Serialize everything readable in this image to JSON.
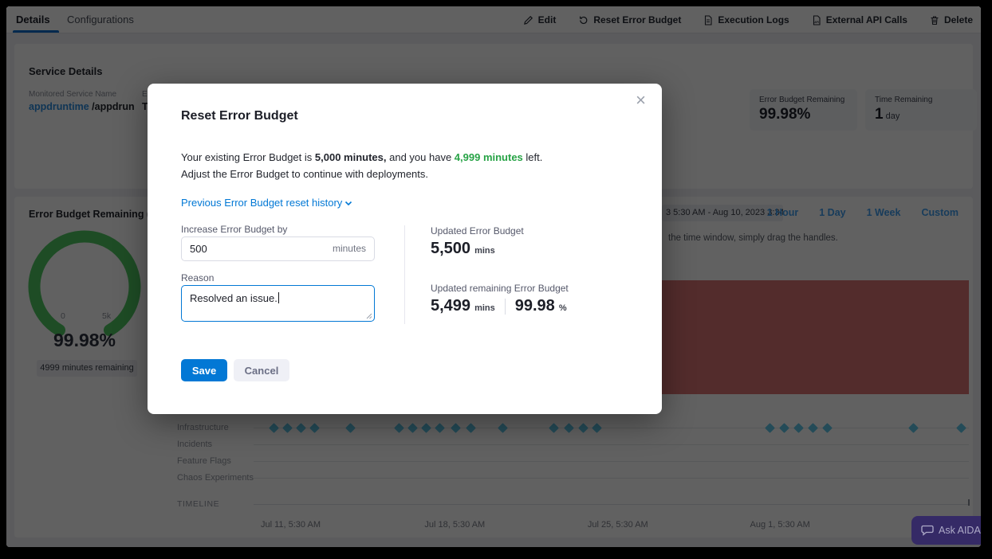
{
  "tabs": {
    "items": [
      {
        "label": "Details",
        "active": true
      },
      {
        "label": "Configurations",
        "active": false
      }
    ]
  },
  "toolbar": {
    "items": [
      {
        "label": "Edit",
        "icon": "pencil-icon"
      },
      {
        "label": "Reset Error Budget",
        "icon": "reset-icon"
      },
      {
        "label": "Execution Logs",
        "icon": "document-icon"
      },
      {
        "label": "External API Calls",
        "icon": "api-document-icon"
      },
      {
        "label": "Delete",
        "icon": "trash-icon"
      }
    ]
  },
  "service_details": {
    "heading": "Service Details",
    "monitored_label": "Monitored Service Name",
    "monitored_value_link": "appdruntime",
    "monitored_value_rest": " /appdrun",
    "second_label_fragment": "Eva",
    "second_value_fragment": "Tim",
    "stats": [
      {
        "label": "Error Budget Remaining",
        "value": "99.98%",
        "unit": ""
      },
      {
        "label": "Time Remaining",
        "value": "1",
        "unit": "day"
      }
    ]
  },
  "burndown": {
    "title": "Error Budget Remaining (mins)",
    "date_range_fragment": "3 5:30 AM - Aug 10, 2023 3:34 PM",
    "range_links": [
      "1 Hour",
      "1 Day",
      "1 Week",
      "Custom"
    ],
    "hint_fragment": "the time window, simply drag the handles.",
    "timeline_label": "TIMELINE"
  },
  "chart_data": {
    "type": "gauge",
    "gauge": {
      "percent": 99.98,
      "display": "99.98%",
      "min_label": "0",
      "max_label": "5k",
      "badge": "4999 minutes remaining",
      "color": "#4fc763"
    },
    "burn_region_color": "#d97575",
    "event_rows": [
      {
        "name": "Infrastructure",
        "marker_pct": [
          2.8,
          4.7,
          6.6,
          8.5,
          13.5,
          20.3,
          22.2,
          24.1,
          26.0,
          28.2,
          30.3,
          34.8,
          41.9,
          44.0,
          46.0,
          47.9,
          72.1,
          74.1,
          76.1,
          78.1,
          80.2,
          92.2,
          98.9
        ]
      },
      {
        "name": "Incidents",
        "marker_pct": []
      },
      {
        "name": "Feature Flags",
        "marker_pct": []
      },
      {
        "name": "Chaos Experiments",
        "marker_pct": []
      }
    ],
    "timeline_ticks": [
      "Jul 11, 5:30 AM",
      "Jul 18, 5:30 AM",
      "Jul 25, 5:30 AM",
      "Aug 1, 5:30 AM"
    ]
  },
  "modal": {
    "title": "Reset Error Budget",
    "close": "×",
    "body_pre": "Your existing Error Budget is ",
    "body_bold": "5,000 minutes,",
    "body_mid": " and you have ",
    "body_green": "4,999 minutes",
    "body_post": " left.",
    "body_line2": "Adjust the Error Budget to continue with deployments.",
    "history_link": "Previous Error Budget reset history",
    "increase_label": "Increase Error Budget by",
    "increase_value": "500",
    "increase_unit": "minutes",
    "reason_label": "Reason",
    "reason_value": "Resolved an issue.",
    "updated_label": "Updated Error Budget",
    "updated_value": "5,500",
    "updated_unit": "mins",
    "remaining_label": "Updated remaining Error Budget",
    "remaining_value": "5,499",
    "remaining_unit": "mins",
    "remaining_pct": "99.98",
    "remaining_pct_unit": "%",
    "save_label": "Save",
    "cancel_label": "Cancel"
  },
  "aida": {
    "label": "Ask AIDA"
  },
  "colors": {
    "accent_blue": "#0278d5",
    "success_green": "#27a346",
    "gauge_green": "#4fc763",
    "burn_red": "#d97575",
    "marker_blue": "#5fc4e8",
    "aida_purple": "#352a66"
  }
}
